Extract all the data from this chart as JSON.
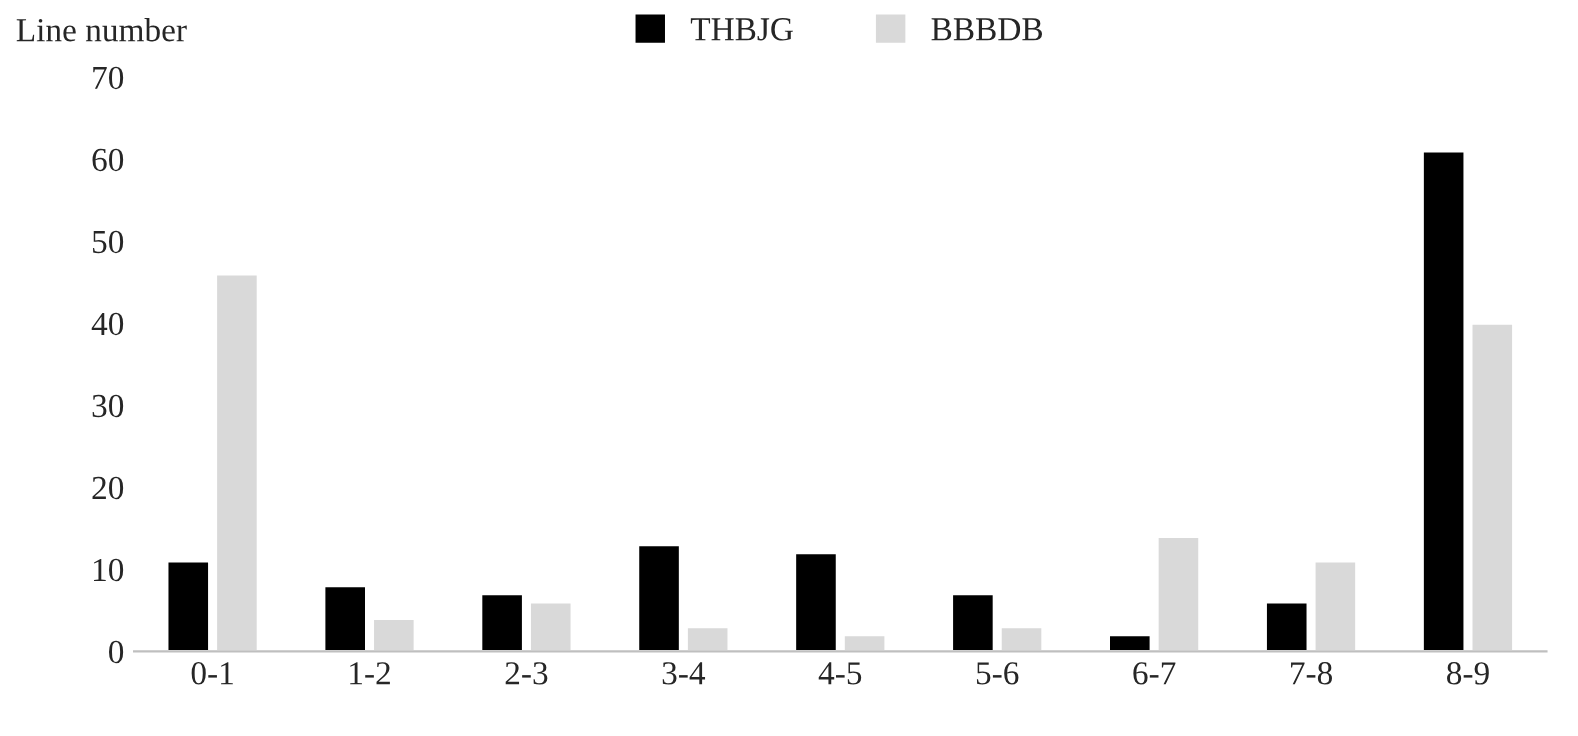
{
  "chart_data": {
    "type": "bar",
    "ylabel": "Line number",
    "categories": [
      "0-1",
      "1-2",
      "2-3",
      "3-4",
      "4-5",
      "5-6",
      "6-7",
      "7-8",
      "8-9"
    ],
    "series": [
      {
        "name": "THBJG",
        "color": "#000000",
        "values": [
          11,
          8,
          7,
          13,
          12,
          7,
          2,
          6,
          61
        ]
      },
      {
        "name": "BBBDB",
        "color": "#d9d9d9",
        "values": [
          46,
          4,
          6,
          3,
          2,
          3,
          14,
          11,
          40
        ]
      }
    ],
    "ylim": [
      0,
      70
    ],
    "yticks": [
      0,
      10,
      20,
      30,
      40,
      50,
      60,
      70
    ],
    "grid": false,
    "legend": "top"
  }
}
